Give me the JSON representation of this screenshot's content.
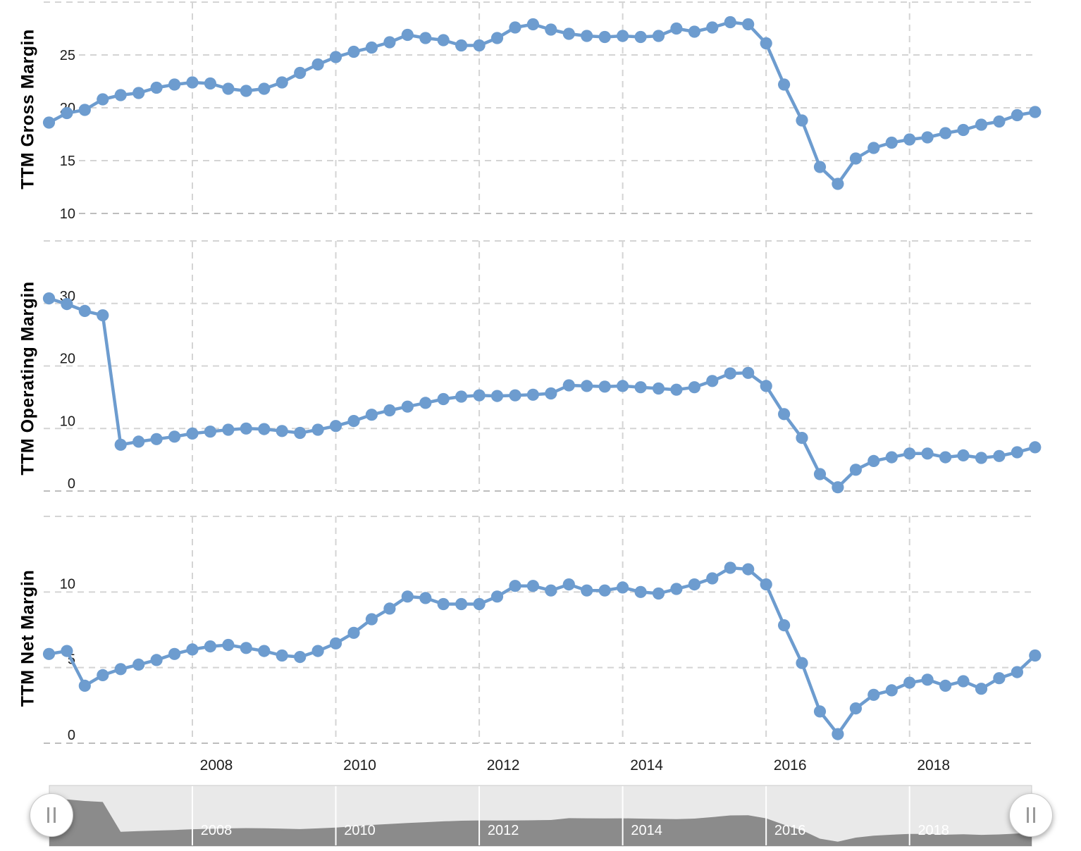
{
  "colors": {
    "series": "#6d9ccf",
    "grid": "#d4d4d4",
    "pane_bottom_line": "#bdbdbd",
    "label": "#1c1c1c",
    "nav_bg": "#e9e9e9",
    "nav_border": "#cccccc",
    "nav_area": "#8b8b8b",
    "nav_gridline": "#ffffff",
    "nav_label": "#ffffff",
    "handle_grip": "#9a9a9a"
  },
  "x_axis": {
    "tick_labels": [
      "2008",
      "2010",
      "2012",
      "2014",
      "2016",
      "2018"
    ],
    "tick_years": [
      2008,
      2010,
      2012,
      2014,
      2016,
      2018
    ]
  },
  "navigator": {
    "tick_labels": [
      "2008",
      "2010",
      "2012",
      "2014",
      "2016",
      "2018"
    ],
    "tick_years": [
      2008,
      2010,
      2012,
      2014,
      2016,
      2018
    ],
    "handle_glyph": "||",
    "area_series_of": "TTM Operating Margin"
  },
  "chart_data": [
    {
      "type": "line",
      "title": "TTM Gross Margin",
      "ylabel": "TTM Gross Margin",
      "x_start": 2006.0,
      "x_step": 0.25,
      "x_ticks": [
        2008,
        2010,
        2012,
        2014,
        2016,
        2018
      ],
      "yticks": [
        10,
        15,
        20,
        25
      ],
      "ylim": [
        10,
        30
      ],
      "grid": "dashed",
      "legend": "none",
      "values": [
        18.6,
        19.5,
        19.8,
        20.8,
        21.2,
        21.4,
        21.9,
        22.2,
        22.4,
        22.3,
        21.8,
        21.6,
        21.8,
        22.4,
        23.3,
        24.1,
        24.8,
        25.3,
        25.7,
        26.2,
        26.9,
        26.6,
        26.4,
        25.9,
        25.9,
        26.6,
        27.6,
        27.9,
        27.4,
        27.0,
        26.8,
        26.7,
        26.8,
        26.7,
        26.8,
        27.5,
        27.2,
        27.6,
        28.1,
        27.9,
        26.1,
        22.2,
        18.8,
        14.4,
        12.8,
        15.2,
        16.2,
        16.7,
        17.0,
        17.2,
        17.6,
        17.9,
        18.4,
        18.7,
        19.3,
        19.6
      ]
    },
    {
      "type": "line",
      "title": "TTM Operating Margin",
      "ylabel": "TTM Operating Margin",
      "x_start": 2006.0,
      "x_step": 0.25,
      "x_ticks": [
        2008,
        2010,
        2012,
        2014,
        2016,
        2018
      ],
      "yticks": [
        0,
        10,
        20,
        30
      ],
      "ylim": [
        0,
        40
      ],
      "grid": "dashed",
      "legend": "none",
      "values": [
        30.8,
        29.9,
        28.8,
        28.1,
        7.4,
        7.9,
        8.3,
        8.7,
        9.2,
        9.5,
        9.8,
        10.0,
        9.9,
        9.6,
        9.3,
        9.8,
        10.4,
        11.2,
        12.2,
        12.9,
        13.5,
        14.1,
        14.7,
        15.1,
        15.3,
        15.2,
        15.3,
        15.4,
        15.6,
        16.9,
        16.8,
        16.7,
        16.8,
        16.6,
        16.4,
        16.2,
        16.6,
        17.6,
        18.8,
        18.9,
        16.8,
        12.3,
        8.5,
        2.7,
        0.6,
        3.4,
        4.8,
        5.4,
        6.0,
        6.0,
        5.4,
        5.7,
        5.3,
        5.6,
        6.2,
        7.0
      ]
    },
    {
      "type": "line",
      "title": "TTM Net Margin",
      "ylabel": "TTM Net Margin",
      "x_start": 2006.0,
      "x_step": 0.25,
      "x_ticks": [
        2008,
        2010,
        2012,
        2014,
        2016,
        2018
      ],
      "yticks": [
        0,
        5,
        10
      ],
      "ylim": [
        0,
        15
      ],
      "grid": "dashed",
      "legend": "none",
      "values": [
        5.9,
        6.1,
        3.8,
        4.5,
        4.9,
        5.2,
        5.5,
        5.9,
        6.2,
        6.4,
        6.5,
        6.3,
        6.1,
        5.8,
        5.7,
        6.1,
        6.6,
        7.3,
        8.2,
        8.9,
        9.7,
        9.6,
        9.2,
        9.2,
        9.2,
        9.7,
        10.4,
        10.4,
        10.1,
        10.5,
        10.1,
        10.1,
        10.3,
        10.0,
        9.9,
        10.2,
        10.5,
        10.9,
        11.6,
        11.5,
        10.5,
        7.8,
        5.3,
        2.1,
        0.6,
        2.3,
        3.2,
        3.5,
        4.0,
        4.2,
        3.8,
        4.1,
        3.6,
        4.3,
        4.7,
        5.8
      ]
    }
  ]
}
